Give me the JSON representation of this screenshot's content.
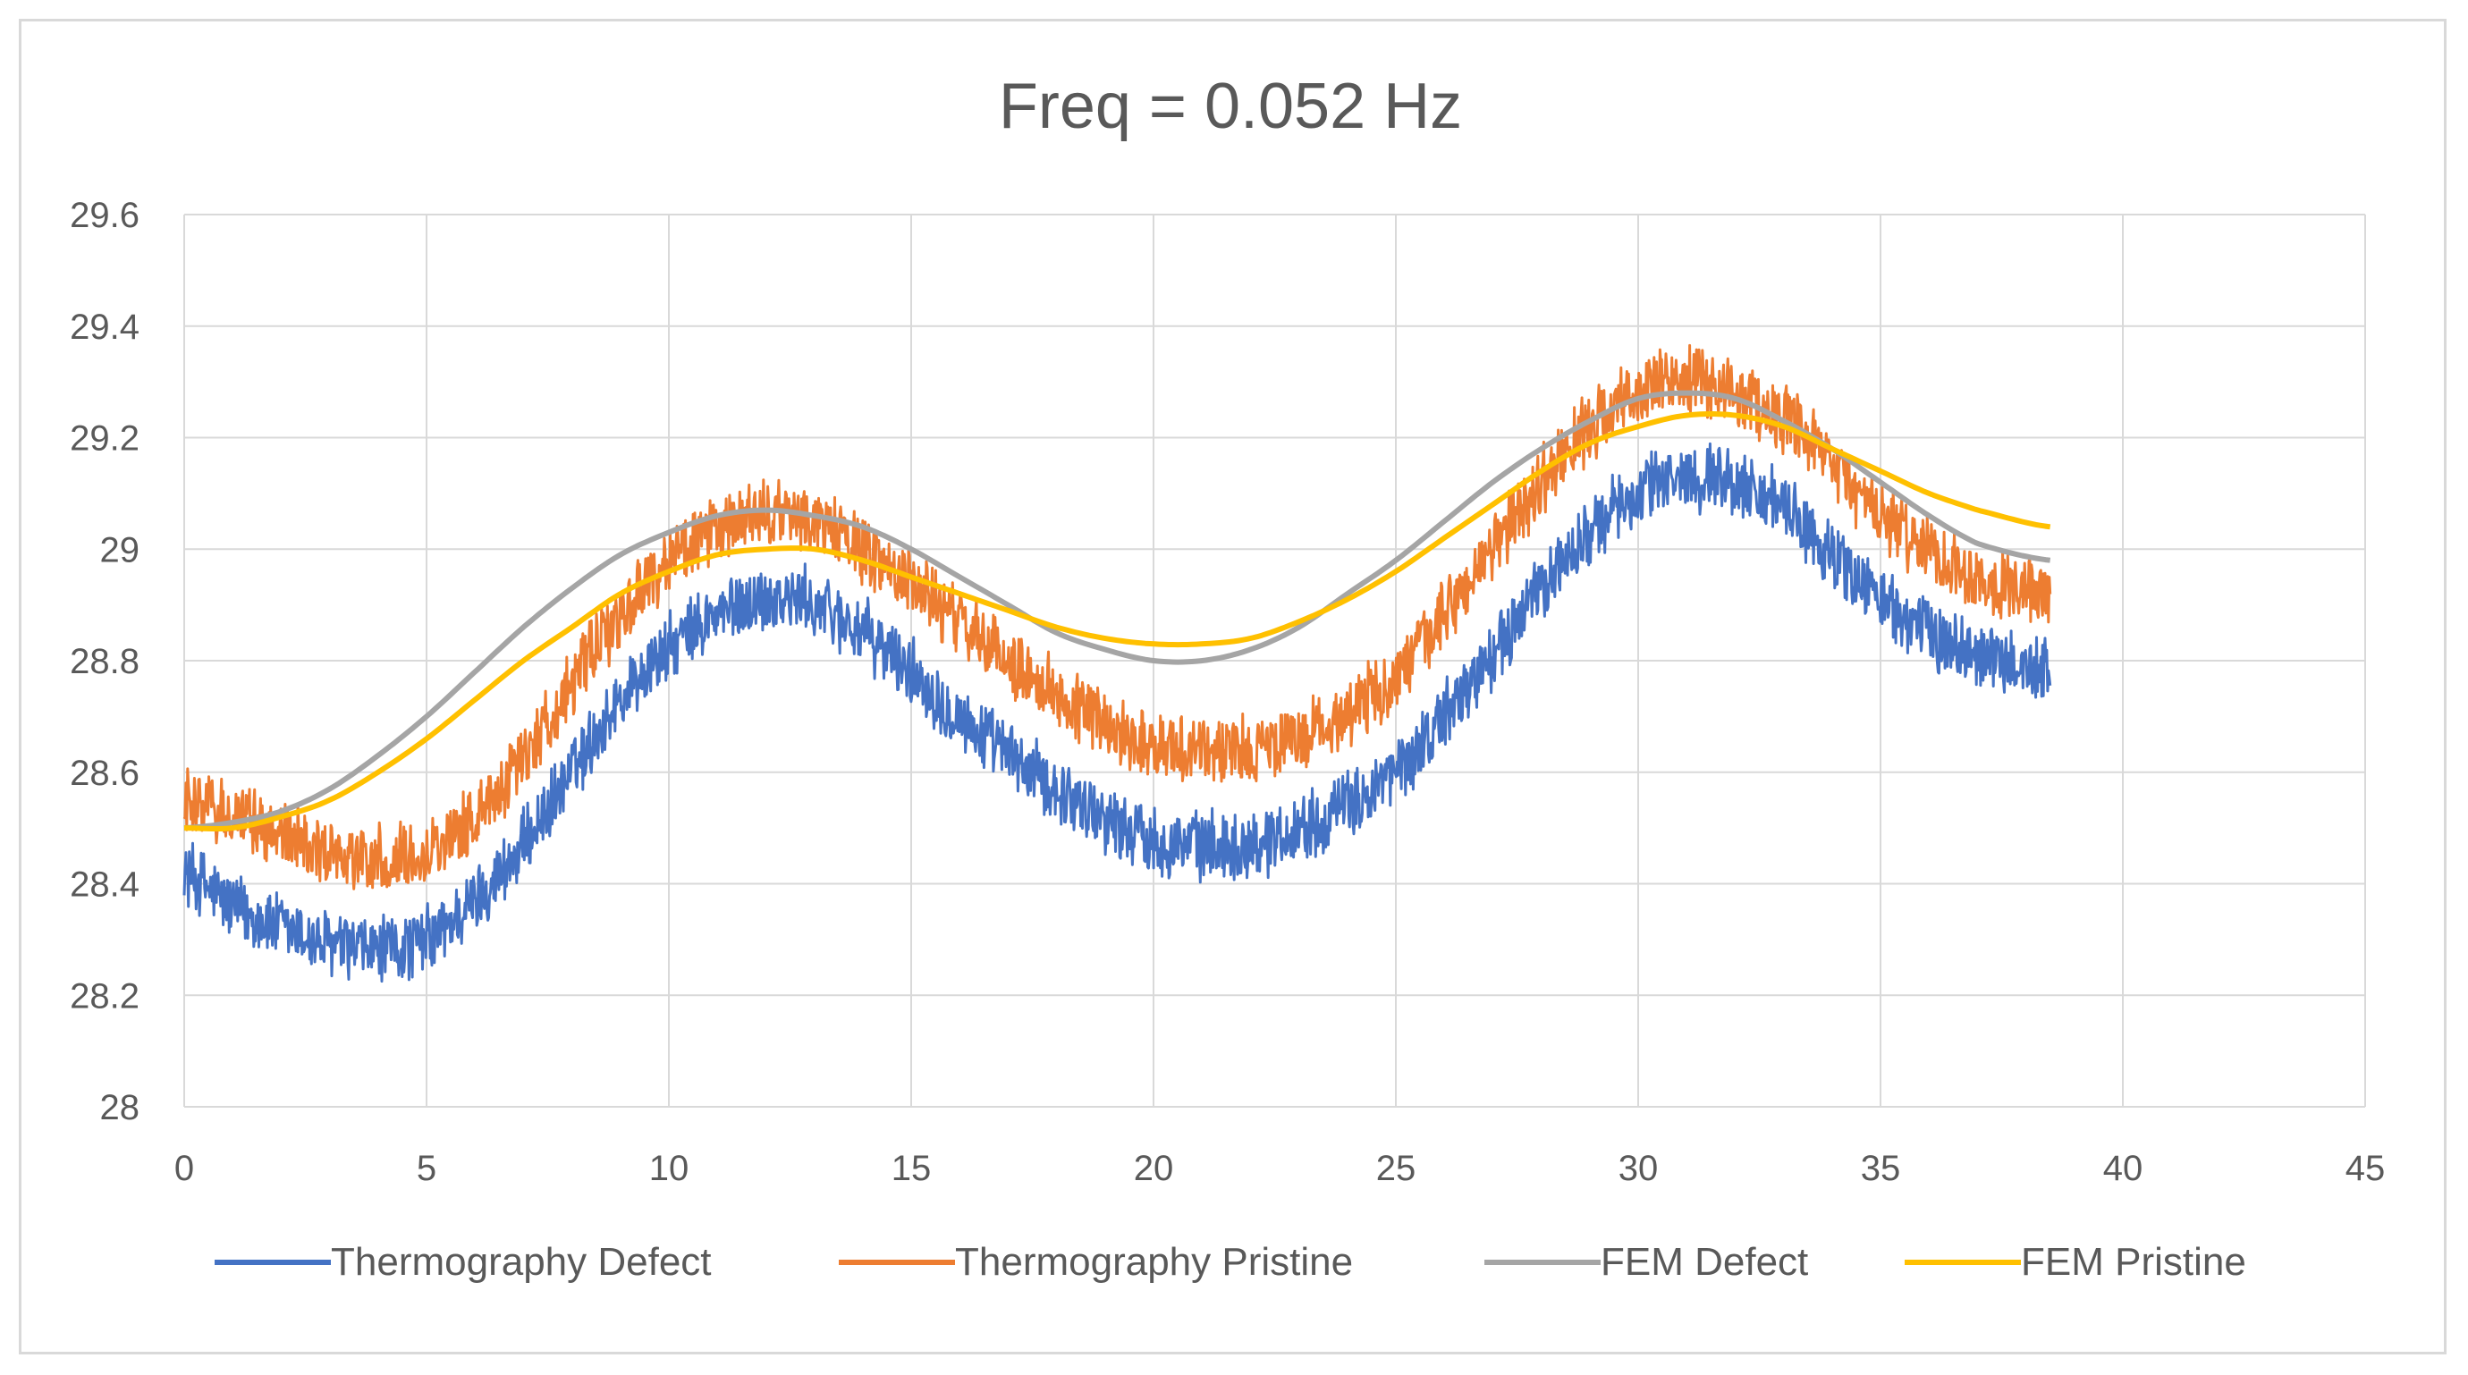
{
  "chart_data": {
    "type": "line",
    "title": "Freq = 0.052 Hz",
    "xlabel": "",
    "ylabel": "",
    "xlim": [
      0,
      45
    ],
    "ylim": [
      28,
      29.6
    ],
    "x_ticks": [
      "0",
      "5",
      "10",
      "15",
      "20",
      "25",
      "30",
      "35",
      "40",
      "45"
    ],
    "y_ticks": [
      "28",
      "28.2",
      "28.4",
      "28.6",
      "28.8",
      "29",
      "29.2",
      "29.4",
      "29.6"
    ],
    "grid": true,
    "legend_position": "bottom",
    "series": [
      {
        "name": "Thermography Defect",
        "color": "#4472c4",
        "noisy": true,
        "noise_amplitude": 0.07,
        "x": [
          0,
          1,
          2,
          3,
          4,
          5,
          6,
          7,
          8,
          9,
          10,
          11,
          12,
          13,
          14,
          15,
          16,
          17,
          18,
          19,
          20,
          21,
          22,
          23,
          24,
          25,
          26,
          27,
          28,
          29,
          30,
          31,
          32,
          33,
          34,
          35,
          36,
          37,
          38.5
        ],
        "y": [
          28.42,
          28.36,
          28.32,
          28.29,
          28.28,
          28.3,
          28.37,
          28.47,
          28.6,
          28.73,
          28.82,
          28.88,
          28.91,
          28.9,
          28.85,
          28.78,
          28.7,
          28.63,
          28.57,
          28.52,
          28.48,
          28.47,
          28.47,
          28.5,
          28.54,
          28.6,
          28.7,
          28.81,
          28.93,
          29.03,
          29.1,
          29.13,
          29.12,
          29.07,
          28.99,
          28.91,
          28.85,
          28.81,
          28.78
        ]
      },
      {
        "name": "Thermography Pristine",
        "color": "#ed7d31",
        "noisy": true,
        "noise_amplitude": 0.07,
        "x": [
          0,
          1,
          2,
          3,
          4,
          5,
          6,
          7,
          8,
          9,
          10,
          11,
          12,
          13,
          14,
          15,
          16,
          17,
          18,
          19,
          20,
          21,
          22,
          23,
          24,
          25,
          26,
          27,
          28,
          29,
          30,
          31,
          32,
          33,
          34,
          35,
          36,
          37,
          38.5
        ],
        "y": [
          28.55,
          28.52,
          28.49,
          28.46,
          28.44,
          28.46,
          28.52,
          28.63,
          28.76,
          28.88,
          28.98,
          29.03,
          29.06,
          29.05,
          29.0,
          28.94,
          28.87,
          28.8,
          28.74,
          28.69,
          28.65,
          28.64,
          28.64,
          28.66,
          28.71,
          28.77,
          28.88,
          29.0,
          29.12,
          29.22,
          29.28,
          29.3,
          29.28,
          29.23,
          29.15,
          29.06,
          29.0,
          28.95,
          28.92
        ]
      },
      {
        "name": "FEM Defect",
        "color": "#a5a5a5",
        "noisy": false,
        "x": [
          0,
          1,
          2,
          3,
          4,
          5,
          6,
          7,
          8,
          9,
          10,
          11,
          12,
          13,
          14,
          15,
          16,
          17,
          18,
          19,
          20,
          21,
          22,
          23,
          24,
          25,
          26,
          27,
          28,
          29,
          30,
          31,
          32,
          33,
          34,
          35,
          36,
          37,
          38.5
        ],
        "y": [
          28.5,
          28.51,
          28.53,
          28.57,
          28.63,
          28.7,
          28.78,
          28.86,
          28.93,
          28.99,
          29.03,
          29.06,
          29.07,
          29.06,
          29.04,
          29.0,
          28.95,
          28.9,
          28.85,
          28.82,
          28.8,
          28.8,
          28.82,
          28.86,
          28.92,
          28.98,
          29.05,
          29.12,
          29.18,
          29.23,
          29.27,
          29.28,
          29.27,
          29.23,
          29.18,
          29.12,
          29.06,
          29.01,
          28.98
        ]
      },
      {
        "name": "FEM Pristine",
        "color": "#ffc000",
        "noisy": false,
        "x": [
          0,
          1,
          2,
          3,
          4,
          5,
          6,
          7,
          8,
          9,
          10,
          11,
          12,
          13,
          14,
          15,
          16,
          17,
          18,
          19,
          20,
          21,
          22,
          23,
          24,
          25,
          26,
          27,
          28,
          29,
          30,
          31,
          32,
          33,
          34,
          35,
          36,
          37,
          38.5
        ],
        "y": [
          28.5,
          28.5,
          28.52,
          28.55,
          28.6,
          28.66,
          28.73,
          28.8,
          28.86,
          28.92,
          28.96,
          28.99,
          29.0,
          29.0,
          28.98,
          28.95,
          28.92,
          28.89,
          28.86,
          28.84,
          28.83,
          28.83,
          28.84,
          28.87,
          28.91,
          28.96,
          29.02,
          29.08,
          29.14,
          29.19,
          29.22,
          29.24,
          29.24,
          29.22,
          29.18,
          29.14,
          29.1,
          29.07,
          29.04
        ]
      }
    ]
  }
}
